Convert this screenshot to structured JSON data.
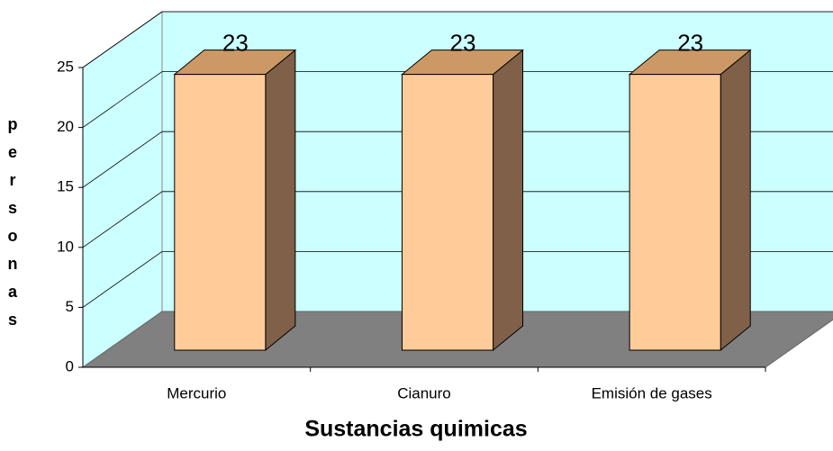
{
  "chart_data": {
    "type": "bar3d",
    "categories": [
      "Mercurio",
      "Cianuro",
      "Emisión de gases"
    ],
    "values": [
      23,
      23,
      23
    ],
    "ylabel": "personas",
    "xlabel": "Sustancias quimicas",
    "ylim": [
      0,
      25
    ],
    "yticks": [
      0,
      5,
      10,
      15,
      20,
      25
    ],
    "grid": true,
    "color": "#FFCC99",
    "top_color": "#CC9966",
    "side_color": "#806048",
    "wall_color": "#CCFFFF",
    "floor_color": "#808080"
  }
}
